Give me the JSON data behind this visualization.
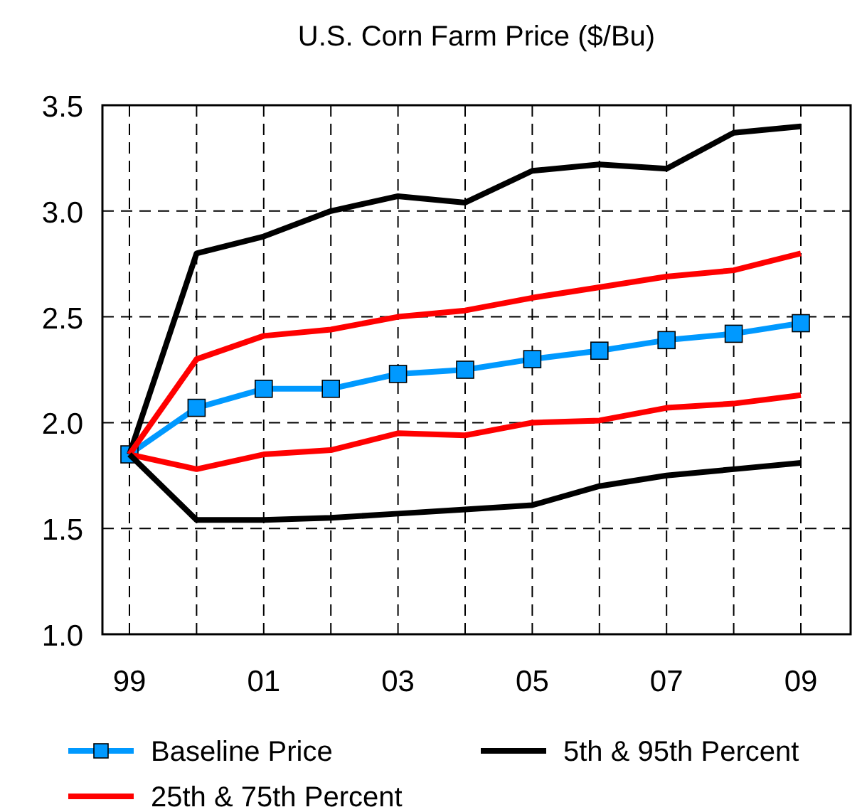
{
  "chart_data": {
    "type": "line",
    "title": "U.S. Corn Farm Price ($/Bu)",
    "categories": [
      "99",
      null,
      "01",
      null,
      "03",
      null,
      "05",
      null,
      "07",
      null,
      "09"
    ],
    "series": [
      {
        "name": "Baseline Price",
        "color": "#0099ff",
        "marker": "square",
        "values": [
          1.85,
          2.07,
          2.16,
          2.16,
          2.23,
          2.25,
          2.3,
          2.34,
          2.39,
          2.42,
          2.47
        ]
      },
      {
        "name": "5th & 95th Percent",
        "color": "#000000",
        "marker": "none",
        "values": [
          1.85,
          2.8,
          2.88,
          3.0,
          3.07,
          3.04,
          3.19,
          3.22,
          3.2,
          3.37,
          3.4
        ]
      },
      {
        "name": "25th & 75th Percent",
        "color": "#ff0000",
        "marker": "none",
        "values": [
          1.85,
          2.3,
          2.41,
          2.44,
          2.5,
          2.53,
          2.59,
          2.64,
          2.69,
          2.72,
          2.8
        ]
      },
      {
        "color": "#ff0000",
        "marker": "none",
        "values": [
          1.85,
          1.78,
          1.85,
          1.87,
          1.95,
          1.94,
          2.0,
          2.01,
          2.07,
          2.09,
          2.13
        ]
      },
      {
        "color": "#000000",
        "marker": "none",
        "values": [
          1.85,
          1.54,
          1.54,
          1.55,
          1.57,
          1.59,
          1.61,
          1.7,
          1.75,
          1.78,
          1.81
        ]
      }
    ],
    "ylim": [
      1,
      3.5
    ],
    "yticks": [
      {
        "value": 1,
        "label": "1.0"
      },
      1.5,
      {
        "value": 2,
        "label": "2.0"
      },
      2.5,
      {
        "value": 3,
        "label": "3.0"
      },
      3.5
    ],
    "grid": true,
    "line_style": "solid",
    "legend": "bottom"
  }
}
